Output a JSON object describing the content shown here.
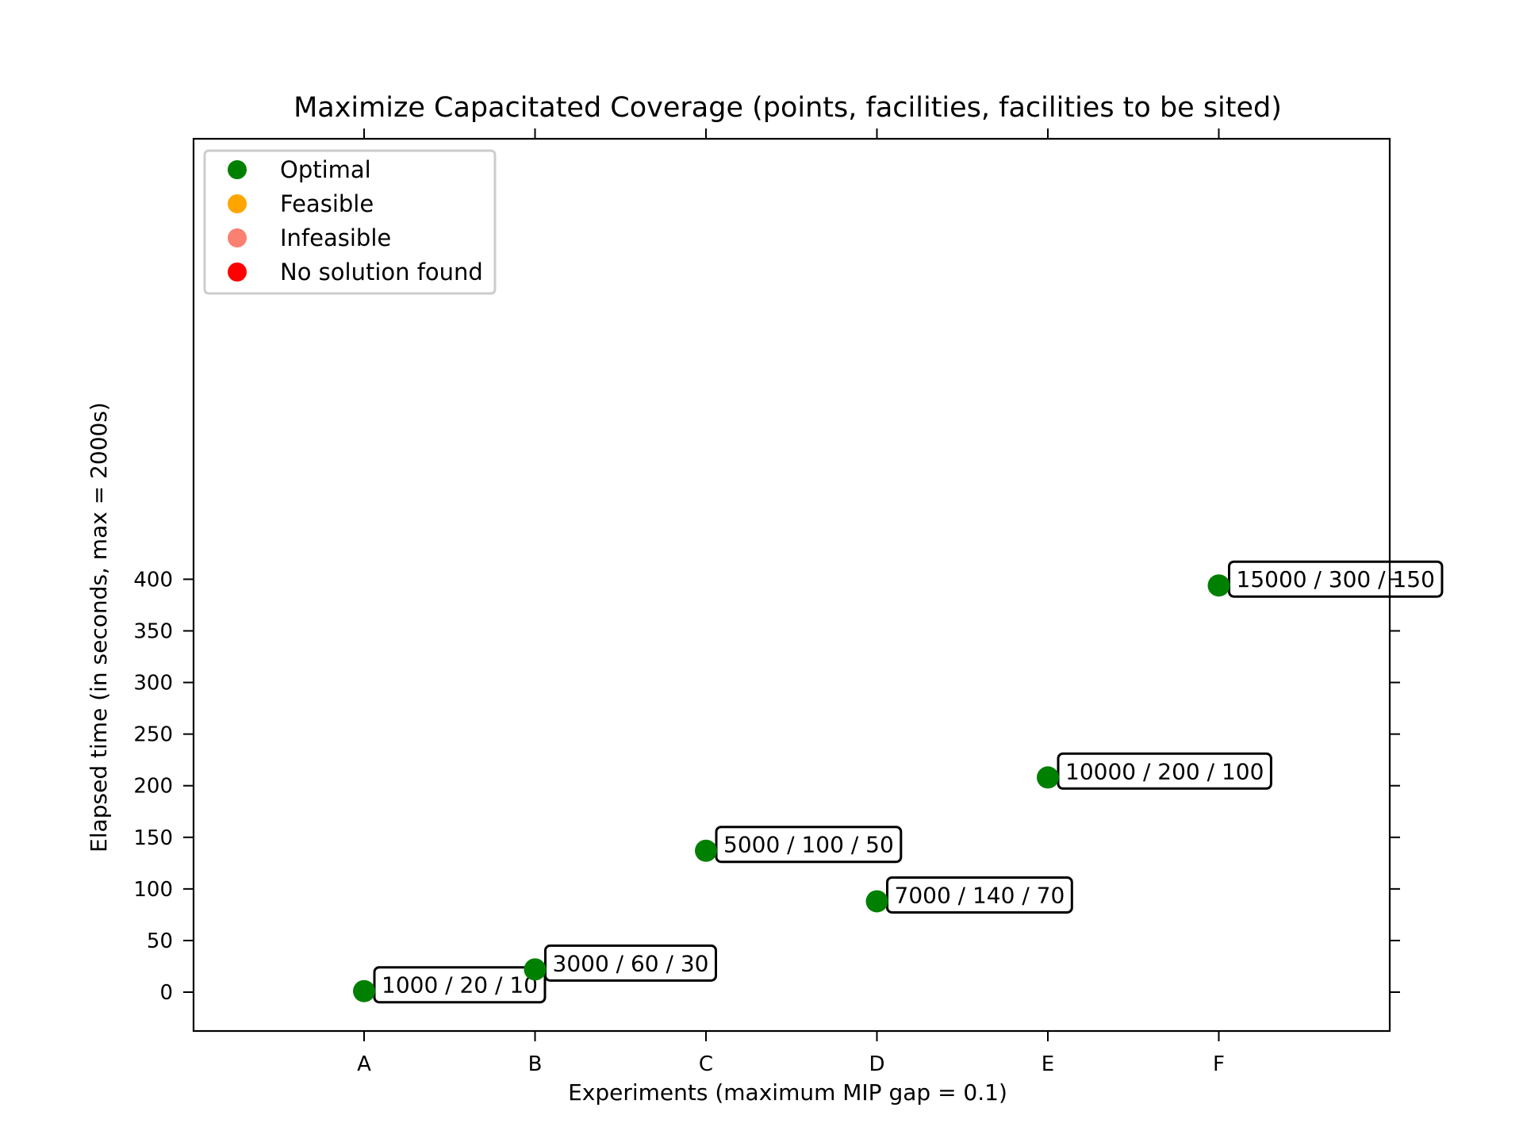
{
  "chart_data": {
    "type": "scatter",
    "title": "Maximize Capacitated Coverage (points, facilities, facilities to be sited)",
    "xlabel": "Experiments (maximum MIP gap = 0.1)",
    "ylabel": "Elapsed time (in seconds, max = 2000s)",
    "categories": [
      "A",
      "B",
      "C",
      "D",
      "E",
      "F"
    ],
    "ylim": [
      -19,
      400
    ],
    "yticks": [
      "0",
      "50",
      "100",
      "150",
      "200",
      "250",
      "300",
      "350",
      "400"
    ],
    "grid": false,
    "legend_position": "top-left",
    "legend": [
      {
        "label": "Optimal",
        "color": "#008000"
      },
      {
        "label": "Feasible",
        "color": "#ffa500"
      },
      {
        "label": "Infeasible",
        "color": "#fa8072"
      },
      {
        "label": "No solution found",
        "color": "#ff0000"
      }
    ],
    "series": [
      {
        "name": "Optimal",
        "color": "#008000",
        "points": [
          {
            "x": "A",
            "y": 1,
            "label": "1000 / 20 / 10"
          },
          {
            "x": "B",
            "y": 22,
            "label": "3000 / 60 / 30"
          },
          {
            "x": "C",
            "y": 137,
            "label": "5000 / 100 / 50"
          },
          {
            "x": "D",
            "y": 88,
            "label": "7000 / 140 / 70"
          },
          {
            "x": "E",
            "y": 208,
            "label": "10000 / 200 / 100"
          },
          {
            "x": "F",
            "y": 394,
            "label": "15000 / 300 / 150"
          }
        ]
      }
    ]
  }
}
